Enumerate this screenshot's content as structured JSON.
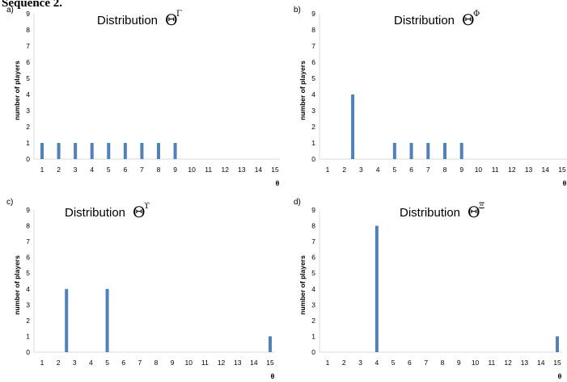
{
  "page": {
    "heading": "Sequence 2."
  },
  "colors": {
    "bar": "#4f81bd",
    "axis": "#d9d9d9",
    "text": "#000000"
  },
  "chart_data": [
    {
      "type": "bar",
      "panel_label": "a)",
      "title_text": "Distribution",
      "title_symbol": "Θ",
      "title_superscript": "Γ",
      "xlabel": "θ",
      "ylabel": "number of players",
      "categories": [
        "1",
        "2",
        "3",
        "4",
        "5",
        "6",
        "7",
        "8",
        "9",
        "10",
        "11",
        "12",
        "13",
        "14",
        "15"
      ],
      "ylim": [
        0,
        9
      ],
      "yticks": [
        "0",
        "1",
        "2",
        "3",
        "4",
        "5",
        "6",
        "7",
        "8",
        "9"
      ],
      "bars": [
        {
          "x": 1,
          "value": 1
        },
        {
          "x": 2,
          "value": 1
        },
        {
          "x": 3,
          "value": 1
        },
        {
          "x": 4,
          "value": 1
        },
        {
          "x": 5,
          "value": 1
        },
        {
          "x": 6,
          "value": 1
        },
        {
          "x": 7,
          "value": 1
        },
        {
          "x": 8,
          "value": 1
        },
        {
          "x": 9,
          "value": 1
        }
      ]
    },
    {
      "type": "bar",
      "panel_label": "b)",
      "title_text": "Distribution",
      "title_symbol": "Θ",
      "title_superscript": "Φ",
      "xlabel": "θ",
      "ylabel": "number of players",
      "categories": [
        "1",
        "2",
        "3",
        "4",
        "5",
        "6",
        "7",
        "8",
        "9",
        "10",
        "11",
        "12",
        "13",
        "14",
        "15"
      ],
      "ylim": [
        0,
        9
      ],
      "yticks": [
        "0",
        "1",
        "2",
        "3",
        "4",
        "5",
        "6",
        "7",
        "8",
        "9"
      ],
      "bars": [
        {
          "x": 2.5,
          "value": 4
        },
        {
          "x": 5,
          "value": 1
        },
        {
          "x": 6,
          "value": 1
        },
        {
          "x": 7,
          "value": 1
        },
        {
          "x": 8,
          "value": 1
        },
        {
          "x": 9,
          "value": 1
        }
      ]
    },
    {
      "type": "bar",
      "panel_label": "c)",
      "title_text": "Distribution",
      "title_symbol": "Θ",
      "title_superscript": "ϒ",
      "xlabel": "θ",
      "ylabel": "number of players",
      "categories": [
        "1",
        "2",
        "3",
        "4",
        "5",
        "6",
        "7",
        "8",
        "9",
        "10",
        "11",
        "12",
        "13",
        "14",
        "15"
      ],
      "ylim": [
        0,
        9
      ],
      "yticks": [
        "0",
        "1",
        "2",
        "3",
        "4",
        "5",
        "6",
        "7",
        "8",
        "9"
      ],
      "bars": [
        {
          "x": 2.5,
          "value": 4
        },
        {
          "x": 5,
          "value": 4
        },
        {
          "x": 15,
          "value": 1
        }
      ]
    },
    {
      "type": "bar",
      "panel_label": "d)",
      "title_text": "Distribution",
      "title_symbol": "Θ",
      "title_superscript": "Ξ",
      "xlabel": "θ",
      "ylabel": "number of players",
      "categories": [
        "1",
        "2",
        "3",
        "4",
        "5",
        "6",
        "7",
        "8",
        "9",
        "10",
        "11",
        "12",
        "13",
        "14",
        "15"
      ],
      "ylim": [
        0,
        9
      ],
      "yticks": [
        "0",
        "1",
        "2",
        "3",
        "4",
        "5",
        "6",
        "7",
        "8",
        "9"
      ],
      "bars": [
        {
          "x": 4,
          "value": 8
        },
        {
          "x": 15,
          "value": 1
        }
      ]
    }
  ]
}
